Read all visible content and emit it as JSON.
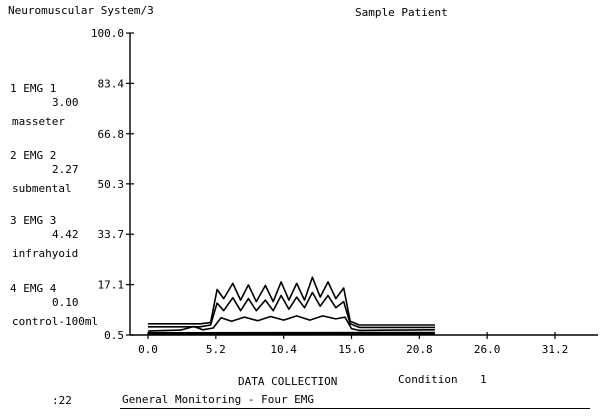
{
  "header": {
    "system_title": "Neuromuscular System/3",
    "patient": "Sample Patient"
  },
  "channels": [
    {
      "label": "1 EMG 1",
      "value": "3.00",
      "muscle": "masseter"
    },
    {
      "label": "2 EMG 2",
      "value": "2.27",
      "muscle": "submental"
    },
    {
      "label": "3 EMG 3",
      "value": "4.42",
      "muscle": "infrahyoid"
    },
    {
      "label": "4 EMG 4",
      "value": "0.10",
      "muscle": "control-100ml"
    }
  ],
  "footer": {
    "mode": "DATA COLLECTION",
    "condition_label": "Condition",
    "condition_value": "1",
    "time": ":22",
    "protocol": "General Monitoring - Four EMG"
  },
  "chart_data": {
    "type": "line",
    "xlim": [
      0,
      31.2
    ],
    "ylim": [
      0.5,
      100
    ],
    "x_ticks": [
      "0.0",
      "5.2",
      "10.4",
      "15.6",
      "20.8",
      "26.0",
      "31.2"
    ],
    "y_ticks": [
      "100.0",
      "83.4",
      "66.8",
      "50.3",
      "33.7",
      "17.1",
      "0.5"
    ],
    "grid": false,
    "colors": {
      "ink": "#000000",
      "background": "#ffffff"
    },
    "series": [
      {
        "values": [
          [
            0,
            4.2
          ],
          [
            4,
            4.2
          ],
          [
            4.8,
            4.6
          ],
          [
            5.3,
            15.5
          ],
          [
            5.8,
            12.5
          ],
          [
            6.5,
            17.5
          ],
          [
            7.1,
            12.0
          ],
          [
            7.7,
            17.0
          ],
          [
            8.3,
            11.5
          ],
          [
            9.0,
            16.8
          ],
          [
            9.6,
            11.5
          ],
          [
            10.2,
            18.0
          ],
          [
            10.8,
            12.0
          ],
          [
            11.4,
            17.5
          ],
          [
            12.0,
            12.0
          ],
          [
            12.6,
            19.5
          ],
          [
            13.2,
            13.0
          ],
          [
            13.8,
            18.0
          ],
          [
            14.4,
            12.5
          ],
          [
            15.0,
            16.0
          ],
          [
            15.5,
            5.0
          ],
          [
            16.2,
            3.8
          ],
          [
            22.0,
            3.8
          ]
        ]
      },
      {
        "values": [
          [
            0,
            3.2
          ],
          [
            4,
            3.2
          ],
          [
            4.8,
            3.8
          ],
          [
            5.3,
            11.0
          ],
          [
            5.8,
            8.5
          ],
          [
            6.5,
            12.8
          ],
          [
            7.1,
            8.5
          ],
          [
            7.7,
            12.5
          ],
          [
            8.3,
            8.5
          ],
          [
            9.0,
            12.0
          ],
          [
            9.6,
            8.5
          ],
          [
            10.2,
            13.5
          ],
          [
            10.8,
            9.0
          ],
          [
            11.4,
            13.0
          ],
          [
            12.0,
            9.5
          ],
          [
            12.6,
            14.5
          ],
          [
            13.2,
            10.0
          ],
          [
            13.8,
            13.5
          ],
          [
            14.4,
            9.5
          ],
          [
            15.0,
            11.5
          ],
          [
            15.5,
            4.2
          ],
          [
            16.2,
            3.0
          ],
          [
            22.0,
            3.0
          ]
        ]
      },
      {
        "values": [
          [
            0,
            1.8
          ],
          [
            2.5,
            2.1
          ],
          [
            3.5,
            3.3
          ],
          [
            4.2,
            2.2
          ],
          [
            5.0,
            2.8
          ],
          [
            5.6,
            6.2
          ],
          [
            6.4,
            5.0
          ],
          [
            7.4,
            6.4
          ],
          [
            8.4,
            5.2
          ],
          [
            9.4,
            6.6
          ],
          [
            10.4,
            5.4
          ],
          [
            11.4,
            6.8
          ],
          [
            12.4,
            5.4
          ],
          [
            13.4,
            6.8
          ],
          [
            14.4,
            5.8
          ],
          [
            15.1,
            6.4
          ],
          [
            15.6,
            2.6
          ],
          [
            16.2,
            2.0
          ],
          [
            22.0,
            2.2
          ]
        ]
      },
      {
        "values": [
          [
            0,
            1.0
          ],
          [
            22.0,
            1.1
          ]
        ]
      }
    ]
  }
}
